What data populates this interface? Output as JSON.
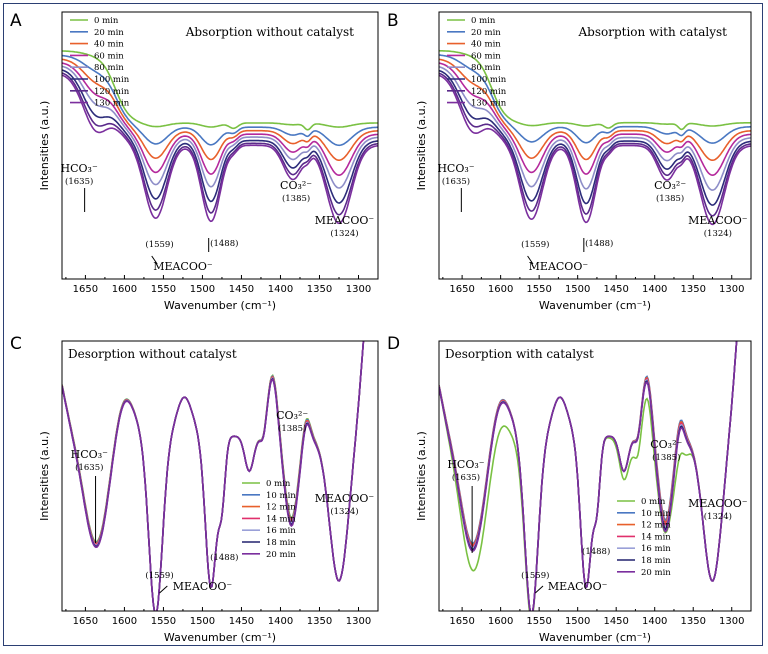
{
  "palette": [
    "#7ac143",
    "#4a78c2",
    "#e8602c",
    "#b5299c",
    "#8e8ec8",
    "#2c2c7a",
    "#5a2a8a",
    "#7b2f9e"
  ],
  "chart_data": [
    {
      "panel": "A",
      "title": "Absorption without catalyst",
      "type": "line",
      "xlabel": "Wavenumber (cm⁻¹)",
      "ylabel": "Intensities (a.u.)",
      "xlim": [
        1680,
        1275
      ],
      "xticks": [
        1650,
        1600,
        1550,
        1500,
        1450,
        1400,
        1350,
        1300
      ],
      "legend": [
        "0 min",
        "20 min",
        "40 min",
        "60 min",
        "80 min",
        "100 min",
        "120 min",
        "130 min"
      ],
      "annotations": [
        {
          "label": "HCO₃⁻",
          "sub": "(1635)"
        },
        {
          "label": "(1559)"
        },
        {
          "label": "(1488)"
        },
        {
          "label": "MEACOO⁻"
        },
        {
          "label": "CO₃²⁻",
          "sub": "(1385)"
        },
        {
          "label": "MEACOO⁻",
          "sub": "(1324)"
        }
      ],
      "series_depth": [
        0.05,
        0.22,
        0.36,
        0.5,
        0.62,
        0.76,
        0.87,
        0.95
      ]
    },
    {
      "panel": "B",
      "title": "Absorption with catalyst",
      "type": "line",
      "xlabel": "Wavenumber (cm⁻¹)",
      "ylabel": "Intensities (a.u.)",
      "xlim": [
        1680,
        1275
      ],
      "xticks": [
        1650,
        1600,
        1550,
        1500,
        1450,
        1400,
        1350,
        1300
      ],
      "legend": [
        "0 min",
        "20 min",
        "40 min",
        "60 min",
        "80 min",
        "100 min",
        "120 min",
        "130 min"
      ],
      "annotations": [
        {
          "label": "HCO₃⁻",
          "sub": "(1635)"
        },
        {
          "label": "(1559)"
        },
        {
          "label": "(1488)"
        },
        {
          "label": "MEACOO⁻"
        },
        {
          "label": "CO₃²⁻",
          "sub": "(1385)"
        },
        {
          "label": "MEACOO⁻",
          "sub": "(1324)"
        }
      ],
      "series_depth": [
        0.04,
        0.2,
        0.36,
        0.5,
        0.64,
        0.78,
        0.88,
        0.96
      ]
    },
    {
      "panel": "C",
      "title": "Desorption without catalyst",
      "type": "line",
      "xlabel": "Wavenumber (cm⁻¹)",
      "ylabel": "Intensities (a.u.)",
      "xlim": [
        1680,
        1275
      ],
      "xticks": [
        1650,
        1600,
        1550,
        1500,
        1450,
        1400,
        1350,
        1300
      ],
      "legend": [
        "0 min",
        "10 min",
        "12 min",
        "14 min",
        "16 min",
        "18 min",
        "20 min"
      ],
      "annotations": [
        {
          "label": "HCO₃⁻",
          "sub": "(1635)"
        },
        {
          "label": "(1559)"
        },
        {
          "label": "MEACOO⁻"
        },
        {
          "label": "(1488)"
        },
        {
          "label": "CO₃²⁻",
          "sub": "(1385)"
        },
        {
          "label": "MEACOO⁻",
          "sub": "(1324)"
        }
      ]
    },
    {
      "panel": "D",
      "title": "Desorption with catalyst",
      "type": "line",
      "xlabel": "Wavenumber (cm⁻¹)",
      "ylabel": "Intensities (a.u.)",
      "xlim": [
        1680,
        1275
      ],
      "xticks": [
        1650,
        1600,
        1550,
        1500,
        1450,
        1400,
        1350,
        1300
      ],
      "legend": [
        "0 min",
        "10 min",
        "12 min",
        "14 min",
        "16 min",
        "18 min",
        "20 min"
      ],
      "annotations": [
        {
          "label": "HCO₃⁻",
          "sub": "(1635)"
        },
        {
          "label": "(1559)"
        },
        {
          "label": "MEACOO⁻"
        },
        {
          "label": "(1488)"
        },
        {
          "label": "CO₃²⁻",
          "sub": "(1385)"
        },
        {
          "label": "MEACOO⁻",
          "sub": "(1324)"
        }
      ]
    }
  ]
}
